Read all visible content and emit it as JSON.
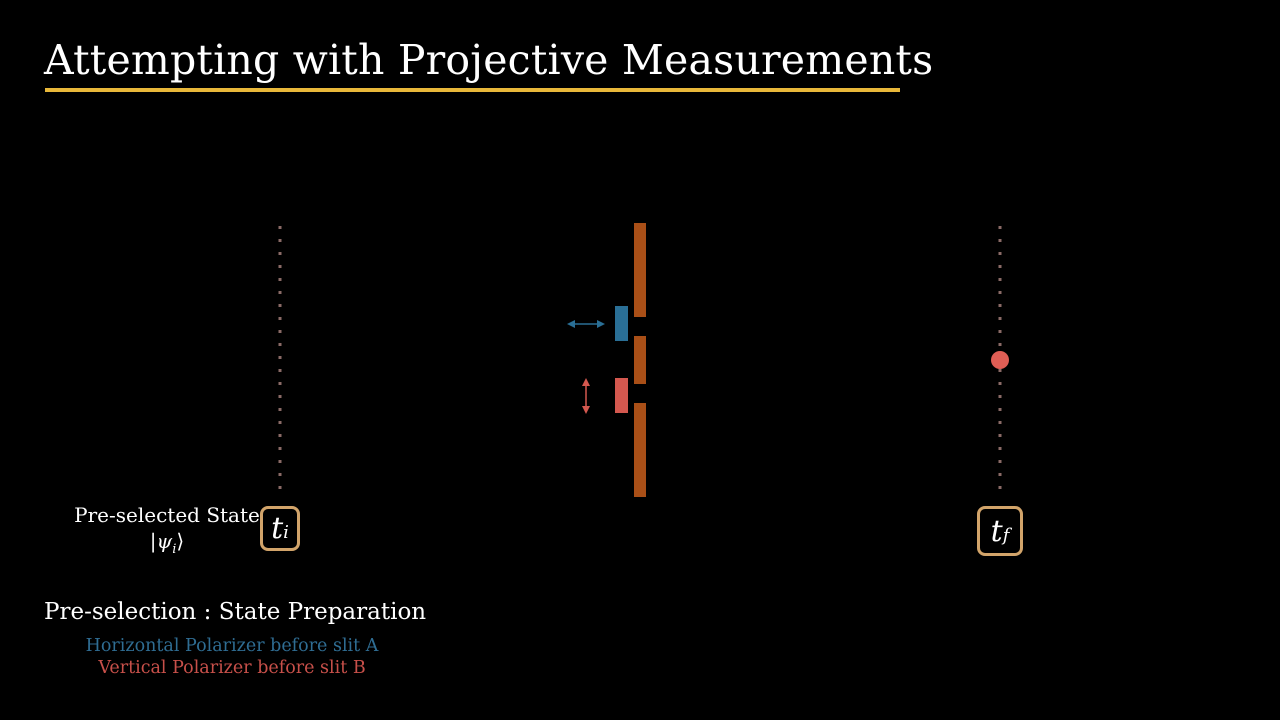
{
  "title": "Attempting with Projective Measurements",
  "pre_selected": {
    "label": "Pre-selected State",
    "state": "|ψ_i⟩",
    "state_symbol": "|ψ",
    "state_sub": "i",
    "state_close": "⟩"
  },
  "time_initial": {
    "symbol": "t",
    "sub": "i"
  },
  "time_final": {
    "symbol": "t",
    "sub": "f"
  },
  "section_heading": "Pre-selection : State Preparation",
  "notes": {
    "horizontal": "Horizontal Polarizer before slit A",
    "vertical": "Vertical Polarizer before slit B"
  },
  "colors": {
    "title_underline": "#e8b83a",
    "timeline_dots": "#8a6a66",
    "time_box_border": "#d2a46a",
    "slit_wall": "#a94f17",
    "horizontal_polarizer": "#2a6f96",
    "vertical_polarizer": "#d4584f",
    "particle": "#e05e55",
    "note_blue": "#2f6d93",
    "note_red": "#c8504a"
  },
  "icons": {
    "horizontal_arrow": "double-headed-horizontal-arrow-icon",
    "vertical_arrow": "double-headed-vertical-arrow-icon"
  }
}
